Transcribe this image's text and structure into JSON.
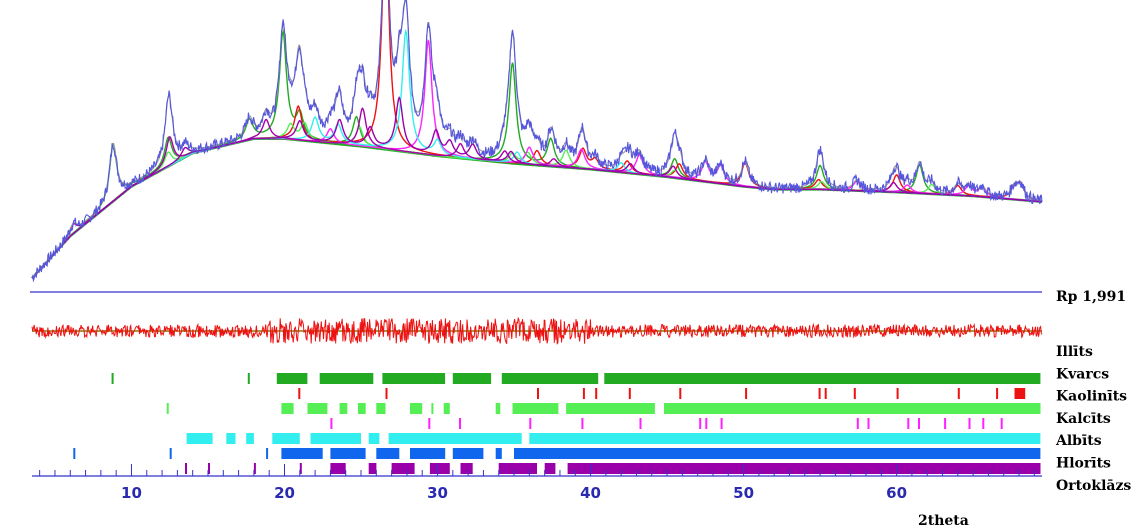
{
  "chart_data": {
    "type": "line",
    "title": "",
    "xlabel": "2theta",
    "ylabel": "",
    "xlim": [
      3.5,
      69.5
    ],
    "x_ticks": [
      10,
      20,
      30,
      40,
      50,
      60
    ],
    "x_minor_step": 1,
    "grid": false,
    "rp_label": "Rp 1,991",
    "colors": {
      "observed": "#5555dd",
      "calculated": "#9a9a9a",
      "background": "#22aa22",
      "difference": "#ee1111",
      "axis": "#3333cc",
      "zero_line": "#8a7a00"
    },
    "background_curve": {
      "x": [
        3.5,
        6,
        10,
        14,
        18,
        20,
        25,
        30,
        35,
        40,
        45,
        50,
        52,
        55,
        60,
        65,
        69.5
      ],
      "y": [
        4,
        48,
        100,
        135,
        150,
        150,
        142,
        132,
        124,
        118,
        110,
        100,
        97,
        97,
        94,
        90,
        84
      ]
    },
    "phase_peaks": [
      {
        "name": "Illīts",
        "color": "#22aa22",
        "peaks": [
          [
            8.8,
            60
          ],
          [
            12.4,
            30
          ],
          [
            17.7,
            20
          ],
          [
            19.9,
            110
          ],
          [
            21.0,
            25
          ],
          [
            24.7,
            30
          ],
          [
            34.9,
            105
          ],
          [
            37.4,
            28
          ],
          [
            45.5,
            20
          ],
          [
            55.0,
            25
          ],
          [
            61.5,
            30
          ]
        ]
      },
      {
        "name": "Kvarcs",
        "color": "#ee1111",
        "peaks": [
          [
            20.9,
            35
          ],
          [
            26.6,
            240
          ],
          [
            36.5,
            15
          ],
          [
            39.5,
            20
          ],
          [
            40.3,
            10
          ],
          [
            42.4,
            12
          ],
          [
            45.8,
            15
          ],
          [
            50.1,
            25
          ],
          [
            54.9,
            10
          ],
          [
            60.0,
            18
          ],
          [
            64.0,
            10
          ],
          [
            67.7,
            12
          ],
          [
            68.1,
            15
          ]
        ]
      },
      {
        "name": "Kaolinīts",
        "color": "#55ee55",
        "peaks": [
          [
            12.4,
            15
          ],
          [
            20.4,
            15
          ],
          [
            21.3,
            18
          ],
          [
            24.9,
            20
          ],
          [
            34.9,
            10
          ],
          [
            35.9,
            12
          ],
          [
            38.4,
            18
          ],
          [
            45.5,
            8
          ],
          [
            55.1,
            8
          ],
          [
            62.3,
            10
          ]
        ]
      },
      {
        "name": "Kalcīts",
        "color": "#ff22ff",
        "peaks": [
          [
            23.0,
            15
          ],
          [
            29.4,
            120
          ],
          [
            36.0,
            18
          ],
          [
            39.4,
            20
          ],
          [
            43.2,
            20
          ],
          [
            47.5,
            20
          ],
          [
            48.5,
            18
          ],
          [
            57.4,
            10
          ],
          [
            60.7,
            8
          ],
          [
            64.7,
            10
          ],
          [
            65.6,
            10
          ]
        ]
      },
      {
        "name": "Albīts",
        "color": "#33eeee",
        "peaks": [
          [
            22.0,
            25
          ],
          [
            23.5,
            20
          ],
          [
            27.9,
            85
          ],
          [
            28.0,
            45
          ],
          [
            30.0,
            15
          ],
          [
            35.2,
            12
          ],
          [
            42.0,
            10
          ]
        ]
      },
      {
        "name": "Hlorīts",
        "color": "#aa00aa",
        "peaks": [
          [
            6.2,
            10
          ],
          [
            12.5,
            30
          ],
          [
            18.8,
            20
          ],
          [
            25.1,
            40
          ],
          [
            31.5,
            15
          ],
          [
            34.4,
            12
          ],
          [
            37.6,
            8
          ],
          [
            45.4,
            12
          ],
          [
            59.8,
            10
          ]
        ]
      },
      {
        "name": "Ortoklāzs",
        "color": "#9900aa",
        "peaks": [
          [
            13.5,
            10
          ],
          [
            21.0,
            20
          ],
          [
            23.6,
            25
          ],
          [
            25.6,
            20
          ],
          [
            27.5,
            55
          ],
          [
            29.9,
            25
          ],
          [
            30.8,
            15
          ],
          [
            32.3,
            15
          ],
          [
            34.8,
            12
          ],
          [
            42.6,
            10
          ]
        ]
      }
    ],
    "tick_rows": [
      {
        "name": "Illīts",
        "color": "#22aa22",
        "ranges": [
          [
            8.7,
            8.7
          ],
          [
            17.6,
            17.6
          ],
          [
            19.5,
            21.5
          ],
          [
            22.3,
            25.8
          ],
          [
            26.4,
            30.5
          ],
          [
            31.0,
            33.5
          ],
          [
            34.2,
            40.5
          ],
          [
            40.9,
            69.4
          ]
        ]
      },
      {
        "name": "Kvarcs",
        "color": "#ee1111",
        "ranges": [
          [
            20.9,
            20.9
          ],
          [
            26.6,
            26.6
          ],
          [
            36.5,
            36.5
          ],
          [
            39.5,
            39.5
          ],
          [
            40.3,
            40.3
          ],
          [
            42.5,
            42.5
          ],
          [
            45.8,
            45.8
          ],
          [
            50.1,
            50.1
          ],
          [
            54.9,
            54.9
          ],
          [
            55.3,
            55.3
          ],
          [
            57.2,
            57.2
          ],
          [
            60.0,
            60.0
          ],
          [
            64.0,
            64.0
          ],
          [
            66.5,
            66.5
          ],
          [
            67.7,
            68.4
          ]
        ]
      },
      {
        "name": "Kaolinīts",
        "color": "#55ee55",
        "ranges": [
          [
            12.3,
            12.3
          ],
          [
            19.8,
            20.6
          ],
          [
            21.5,
            22.8
          ],
          [
            23.6,
            24.1
          ],
          [
            24.8,
            25.3
          ],
          [
            26.0,
            26.6
          ],
          [
            28.2,
            29.0
          ],
          [
            29.6,
            29.6
          ],
          [
            30.4,
            30.8
          ],
          [
            33.8,
            34.1
          ],
          [
            34.9,
            37.9
          ],
          [
            38.4,
            44.2
          ],
          [
            44.8,
            69.4
          ]
        ]
      },
      {
        "name": "Kalcīts",
        "color": "#ff22ff",
        "ranges": [
          [
            23.0,
            23.0
          ],
          [
            29.4,
            29.4
          ],
          [
            31.4,
            31.4
          ],
          [
            36.0,
            36.0
          ],
          [
            39.4,
            39.4
          ],
          [
            43.2,
            43.2
          ],
          [
            47.1,
            47.1
          ],
          [
            47.5,
            47.5
          ],
          [
            48.5,
            48.5
          ],
          [
            57.4,
            57.4
          ],
          [
            58.1,
            58.1
          ],
          [
            60.7,
            60.7
          ],
          [
            61.4,
            61.4
          ],
          [
            63.1,
            63.1
          ],
          [
            64.7,
            64.7
          ],
          [
            65.6,
            65.6
          ],
          [
            66.8,
            66.8
          ]
        ]
      },
      {
        "name": "Albīts",
        "color": "#33eeee",
        "ranges": [
          [
            13.6,
            15.3
          ],
          [
            16.2,
            16.8
          ],
          [
            17.5,
            18.0
          ],
          [
            19.2,
            21.0
          ],
          [
            21.7,
            25.0
          ],
          [
            25.5,
            26.2
          ],
          [
            26.8,
            35.5
          ],
          [
            36.0,
            69.4
          ]
        ]
      },
      {
        "name": "Hlorīts",
        "color": "#1166ee",
        "ranges": [
          [
            6.2,
            6.2
          ],
          [
            12.5,
            12.5
          ],
          [
            18.8,
            18.8
          ],
          [
            19.8,
            22.5
          ],
          [
            23.0,
            25.3
          ],
          [
            26.0,
            27.5
          ],
          [
            28.2,
            30.5
          ],
          [
            31.0,
            33.0
          ],
          [
            33.8,
            34.2
          ],
          [
            35.0,
            69.4
          ]
        ]
      },
      {
        "name": "Ortoklāzs",
        "color": "#9900aa",
        "ranges": [
          [
            13.5,
            13.5
          ],
          [
            15.0,
            15.0
          ],
          [
            18.0,
            18.0
          ],
          [
            21.0,
            21.0
          ],
          [
            23.0,
            24.0
          ],
          [
            25.5,
            26.0
          ],
          [
            27.0,
            28.5
          ],
          [
            29.5,
            30.8
          ],
          [
            31.5,
            32.3
          ],
          [
            34.0,
            36.5
          ],
          [
            37.0,
            37.7
          ],
          [
            38.5,
            69.4
          ]
        ]
      }
    ]
  }
}
